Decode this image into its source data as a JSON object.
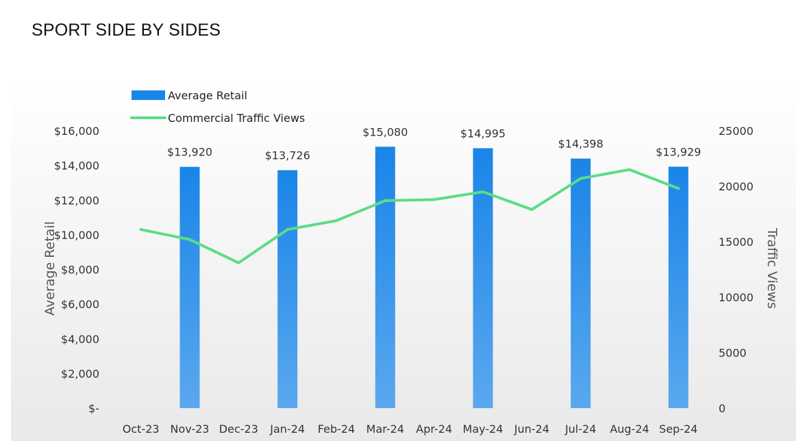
{
  "page": {
    "title": "SPORT SIDE BY SIDES"
  },
  "colors": {
    "bar_top": "#1a85e8",
    "bar_bottom": "#5aa8ee",
    "line": "#5cdc86",
    "text": "#333333",
    "background_top": "#ffffff",
    "background_bottom": "#e9e9e9"
  },
  "chart_data": {
    "type": "bar+line",
    "title": "SPORT SIDE BY SIDES",
    "categories": [
      "Oct-23",
      "Nov-23",
      "Dec-23",
      "Jan-24",
      "Feb-24",
      "Mar-24",
      "Apr-24",
      "May-24",
      "Jun-24",
      "Jul-24",
      "Aug-24",
      "Sep-24"
    ],
    "series": [
      {
        "name": "Average Retail",
        "type": "bar",
        "axis": "left",
        "values": [
          null,
          13920,
          null,
          13726,
          null,
          15080,
          null,
          14995,
          null,
          14398,
          null,
          13929
        ],
        "labels": [
          "",
          "$13,920",
          "",
          "$13,726",
          "",
          "$15,080",
          "",
          "$14,995",
          "",
          "$14,398",
          "",
          "$13,929"
        ]
      },
      {
        "name": "Commercial Traffic Views",
        "type": "line",
        "axis": "right",
        "values": [
          16100,
          15200,
          13100,
          16100,
          16900,
          18700,
          18800,
          19500,
          17900,
          20700,
          21500,
          19800
        ]
      }
    ],
    "ylabel": "Average Retail",
    "y2label": "Traffic Views",
    "ylim": [
      0,
      16000
    ],
    "y2lim": [
      0,
      25000
    ],
    "yticks": [
      0,
      2000,
      4000,
      6000,
      8000,
      10000,
      12000,
      14000,
      16000
    ],
    "ytick_labels": [
      "$-",
      "$2,000",
      "$4,000",
      "$6,000",
      "$8,000",
      "$10,000",
      "$12,000",
      "$14,000",
      "$16,000"
    ],
    "y2ticks": [
      0,
      5000,
      10000,
      15000,
      20000,
      25000
    ],
    "y2tick_labels": [
      "0",
      "5000",
      "10000",
      "15000",
      "20000",
      "25000"
    ],
    "legend": [
      {
        "label": "Average Retail",
        "kind": "bar"
      },
      {
        "label": "Commercial Traffic Views",
        "kind": "line"
      }
    ],
    "legend_position": "top-left",
    "grid": false
  }
}
